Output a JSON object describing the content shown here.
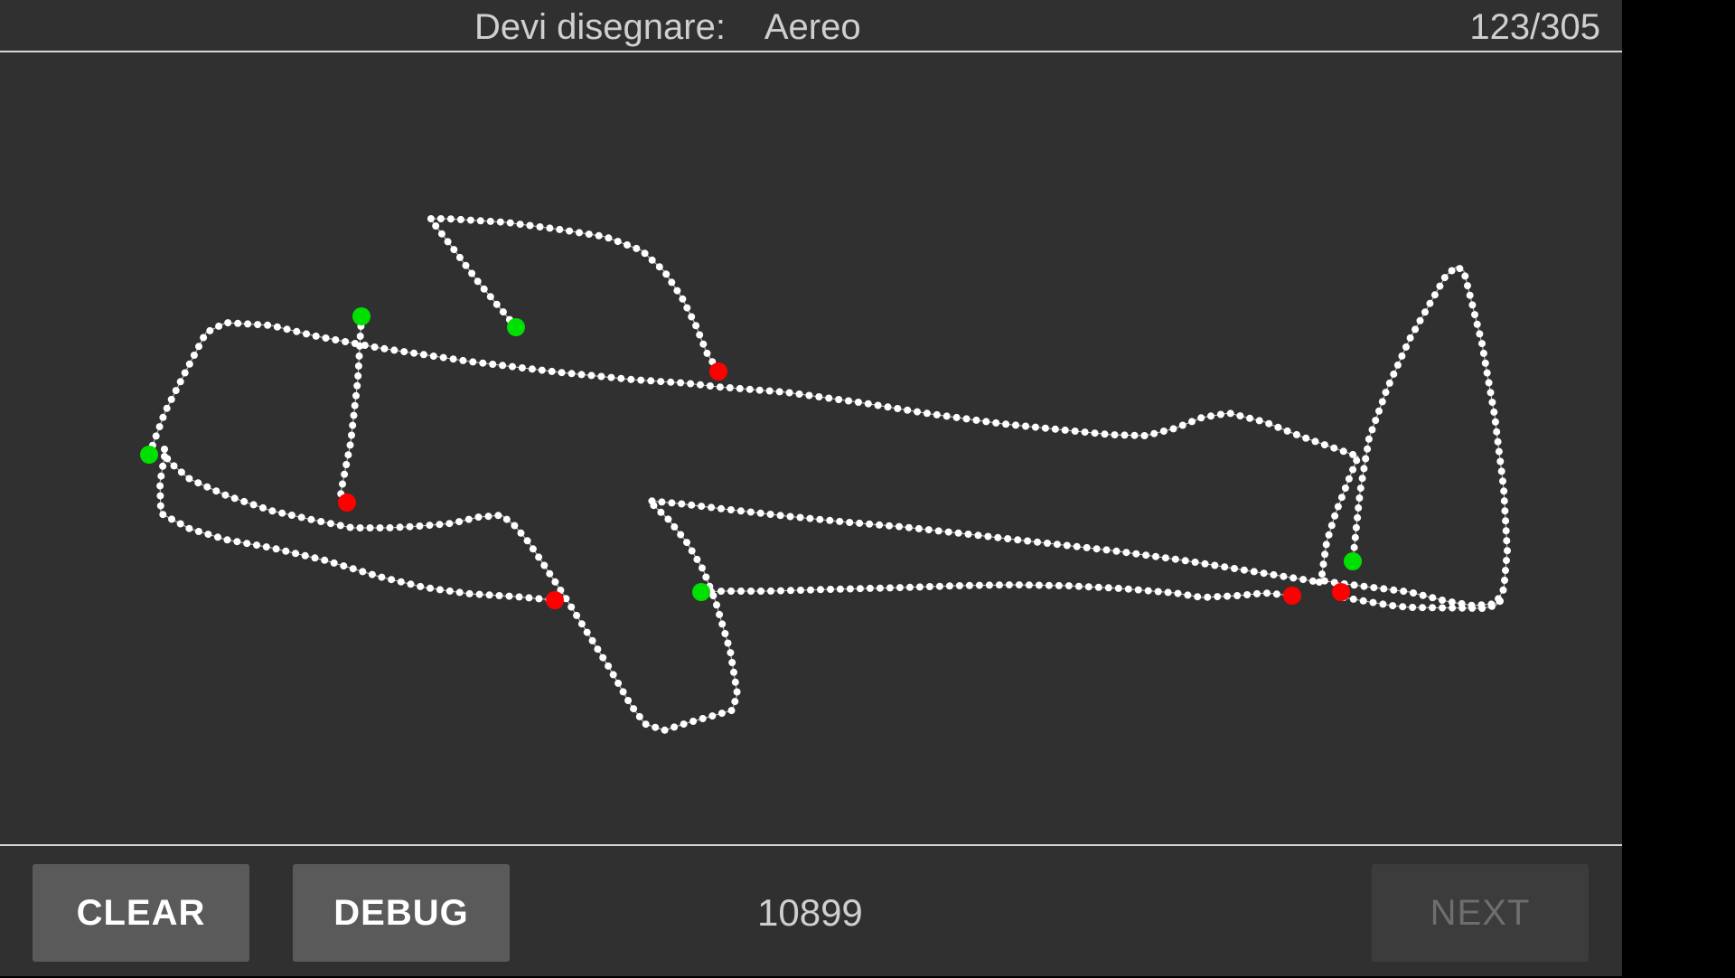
{
  "header": {
    "prompt_label": "Devi disegnare:",
    "target_word": "Aereo",
    "progress": "123/305"
  },
  "canvas": {
    "stroke_color": "#ffffff",
    "start_marker_color": "#00e000",
    "end_marker_color": "#ff0000"
  },
  "footer": {
    "clear_label": "CLEAR",
    "debug_label": "DEBUG",
    "score": "10899",
    "next_label": "NEXT"
  }
}
